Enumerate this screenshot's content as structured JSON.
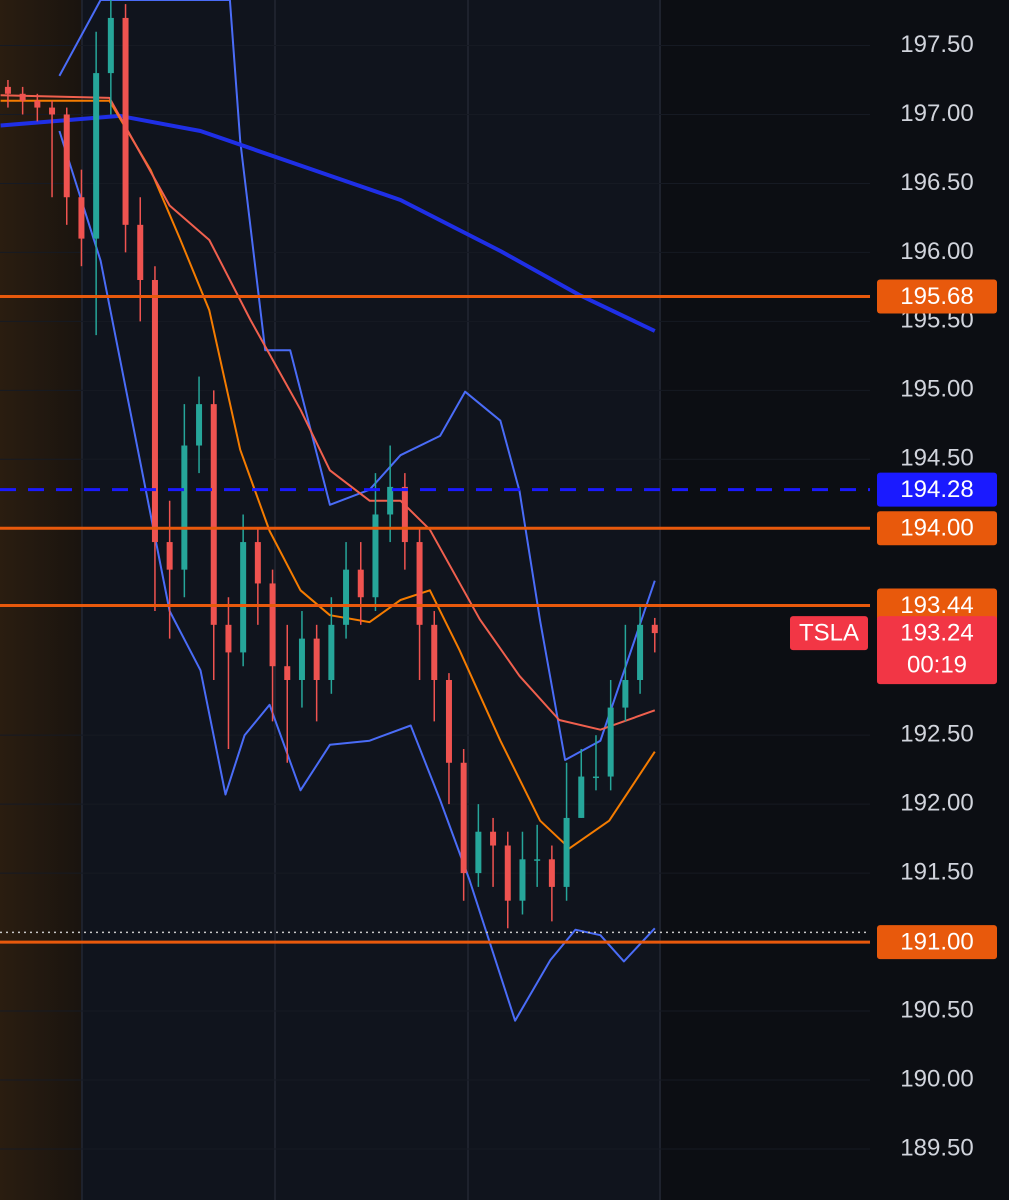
{
  "chart_data": {
    "type": "candlestick",
    "xlim": [
      -0.54,
      58.64
    ],
    "ylim": [
      189.13,
      197.83
    ],
    "yticks": [
      {
        "value": 197.5,
        "label": "197.50"
      },
      {
        "value": 197,
        "label": "197.00"
      },
      {
        "value": 196.5,
        "label": "196.50"
      },
      {
        "value": 196,
        "label": "196.00"
      },
      {
        "value": 195.5,
        "label": "195.50"
      },
      {
        "value": 195,
        "label": "195.00"
      },
      {
        "value": 194.5,
        "label": "194.50"
      },
      {
        "value": 192.5,
        "label": "192.50"
      },
      {
        "value": 192,
        "label": "192.00"
      },
      {
        "value": 191.5,
        "label": "191.50"
      },
      {
        "value": 190.5,
        "label": "190.50"
      },
      {
        "value": 190,
        "label": "190.00"
      },
      {
        "value": 189.5,
        "label": "189.50"
      }
    ],
    "up_color": "#26a69a",
    "down_color": "#ef5350",
    "x": [
      0,
      1,
      2,
      3,
      4,
      5,
      6,
      7,
      8,
      9,
      10,
      11,
      12,
      13,
      14,
      15,
      16,
      17,
      18,
      19,
      20,
      21,
      22,
      23,
      24,
      25,
      26,
      27,
      28,
      29,
      30,
      31,
      32,
      33,
      34,
      35,
      36,
      37,
      38,
      39,
      40,
      41,
      42,
      43,
      44
    ],
    "open": [
      197.2,
      197.15,
      197.1,
      197.05,
      197.0,
      196.4,
      196.1,
      197.3,
      197.7,
      196.2,
      195.8,
      193.9,
      193.7,
      194.6,
      194.9,
      193.3,
      193.1,
      193.9,
      193.6,
      193.0,
      192.9,
      193.2,
      192.9,
      193.3,
      193.7,
      193.5,
      194.1,
      194.3,
      193.9,
      193.3,
      192.9,
      192.3,
      191.5,
      191.8,
      191.7,
      191.3,
      191.6,
      191.6,
      191.4,
      191.9,
      192.2,
      192.2,
      192.7,
      192.9,
      193.3
    ],
    "high": [
      197.25,
      197.2,
      197.15,
      197.1,
      197.05,
      196.6,
      197.6,
      197.83,
      197.8,
      196.4,
      195.9,
      194.2,
      194.9,
      195.1,
      195.0,
      193.5,
      194.1,
      194.0,
      193.7,
      193.3,
      193.4,
      193.3,
      193.5,
      193.9,
      193.9,
      194.4,
      194.6,
      194.4,
      194.0,
      193.4,
      192.95,
      192.4,
      192.0,
      191.9,
      191.8,
      191.8,
      191.85,
      191.7,
      192.3,
      192.4,
      192.5,
      192.9,
      193.3,
      193.45,
      193.35
    ],
    "low": [
      197.05,
      197.0,
      196.95,
      196.4,
      196.2,
      195.9,
      195.4,
      197.0,
      196.0,
      195.5,
      193.4,
      193.2,
      193.5,
      194.4,
      192.9,
      192.4,
      193.0,
      193.3,
      192.6,
      192.3,
      192.7,
      192.6,
      192.8,
      193.2,
      193.3,
      193.4,
      193.9,
      193.7,
      192.9,
      192.6,
      192.0,
      191.3,
      191.4,
      191.4,
      191.1,
      191.2,
      191.4,
      191.15,
      191.3,
      191.9,
      192.1,
      192.1,
      192.6,
      192.8,
      193.1
    ],
    "close": [
      197.15,
      197.1,
      197.05,
      197.0,
      196.4,
      196.1,
      197.3,
      197.7,
      196.2,
      195.8,
      193.9,
      193.7,
      194.6,
      194.9,
      193.3,
      193.1,
      193.9,
      193.6,
      193.0,
      192.9,
      193.2,
      192.9,
      193.3,
      193.7,
      193.5,
      194.1,
      194.3,
      193.9,
      193.3,
      192.9,
      192.3,
      191.5,
      191.8,
      191.7,
      191.3,
      191.6,
      191.6,
      191.4,
      191.9,
      192.2,
      192.2,
      192.7,
      192.9,
      193.3,
      193.24
    ],
    "lines": [
      {
        "color": "#4a6cf7",
        "width": 2,
        "x": [
          3.5,
          6.3,
          15.1,
          15.8,
          17.5,
          19.2,
          21.9,
          24.6,
          26.7,
          29.4,
          31.1,
          33.5,
          34.8,
          36.2,
          37.9,
          40.3,
          44
        ],
        "values": [
          197.28,
          197.83,
          197.83,
          196.81,
          195.29,
          195.29,
          194.17,
          194.28,
          194.53,
          194.67,
          194.99,
          194.78,
          194.27,
          193.33,
          192.32,
          192.46,
          193.62
        ]
      },
      {
        "color": "#4a6cf7",
        "width": 2,
        "x": [
          3.5,
          6.3,
          11.0,
          13.1,
          14.8,
          16.1,
          17.8,
          19.9,
          21.9,
          24.6,
          27.4,
          29.4,
          31.4,
          34.5,
          36.9,
          38.6,
          40.3,
          41.9,
          44
        ],
        "values": [
          196.88,
          195.94,
          193.4,
          192.97,
          192.07,
          192.5,
          192.72,
          192.1,
          192.43,
          192.46,
          192.57,
          192.03,
          191.45,
          190.43,
          190.87,
          191.09,
          191.05,
          190.86,
          191.1
        ]
      },
      {
        "color": "#1f2fe6",
        "width": 4,
        "x": [
          -0.5,
          7.6,
          13.1,
          19.9,
          26.7,
          33.5,
          38.9,
          44
        ],
        "values": [
          196.92,
          196.99,
          196.88,
          196.63,
          196.38,
          196.01,
          195.69,
          195.43
        ]
      },
      {
        "color": "#f57c00",
        "width": 2,
        "x": [
          -0.5,
          6.9,
          9.7,
          11.7,
          13.7,
          15.8,
          17.8,
          19.9,
          21.9,
          24.6,
          26.7,
          28.7,
          30.7,
          33.5,
          36.2,
          38.2,
          40.9,
          44
        ],
        "values": [
          197.1,
          197.1,
          196.6,
          196.1,
          195.58,
          194.57,
          193.98,
          193.55,
          193.37,
          193.32,
          193.48,
          193.55,
          193.12,
          192.46,
          191.88,
          191.68,
          191.88,
          192.38
        ]
      },
      {
        "color": "#f0604e",
        "width": 2,
        "x": [
          -0.5,
          6.9,
          11.0,
          13.7,
          16.5,
          19.9,
          21.9,
          24.6,
          26.7,
          28.7,
          32.1,
          34.8,
          37.5,
          40.3,
          44
        ],
        "values": [
          197.14,
          197.12,
          196.34,
          196.09,
          195.51,
          194.86,
          194.42,
          194.2,
          194.2,
          193.99,
          193.34,
          192.93,
          192.61,
          192.54,
          192.68
        ]
      }
    ],
    "levels": [
      {
        "price": 195.68,
        "color": "#e8590c",
        "style": "solid"
      },
      {
        "price": 194.28,
        "color": "#1a1aff",
        "style": "dashed"
      },
      {
        "price": 194,
        "label": "194.00",
        "color": "#e8590c",
        "style": "solid"
      },
      {
        "price": 193.44,
        "color": "#e8590c",
        "style": "solid"
      },
      {
        "price": 191,
        "label": "191.00",
        "color": "#e8590c",
        "style": "solid"
      }
    ],
    "low_line": 191.07,
    "current": {
      "symbol": "TSLA",
      "price": 193.24,
      "countdown": "00:19",
      "color": "#f23645"
    }
  }
}
